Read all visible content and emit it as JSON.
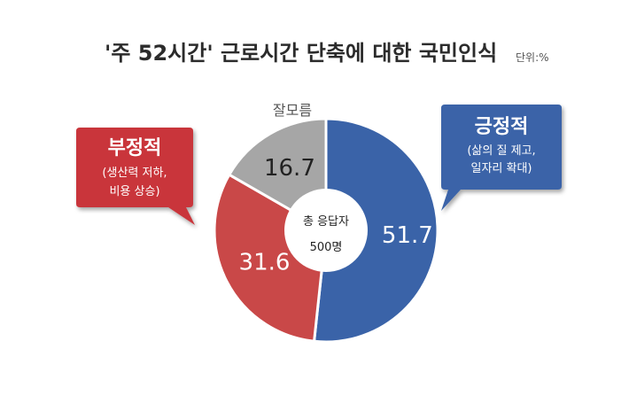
{
  "chart_data": {
    "type": "pie",
    "title": "'주 52시간' 근로시간 단축에 대한 국민인식",
    "unit_label": "단위:%",
    "center_label": [
      "총 응답자",
      "500명"
    ],
    "slices": [
      {
        "label": "긍정적",
        "sublabel": [
          "(삶의 질 제고,",
          "일자리 확대)"
        ],
        "value": 51.7,
        "color": "#3a63a8",
        "callout_color": "#3a63a8"
      },
      {
        "label": "부정적",
        "sublabel": [
          "(생산력 저하,",
          "비용 상승)"
        ],
        "value": 31.6,
        "color": "#c94848",
        "callout_color": "#c9363b"
      },
      {
        "label": "잘모름",
        "sublabel": [],
        "value": 16.7,
        "color": "#a6a6a6",
        "callout_color": ""
      }
    ]
  }
}
